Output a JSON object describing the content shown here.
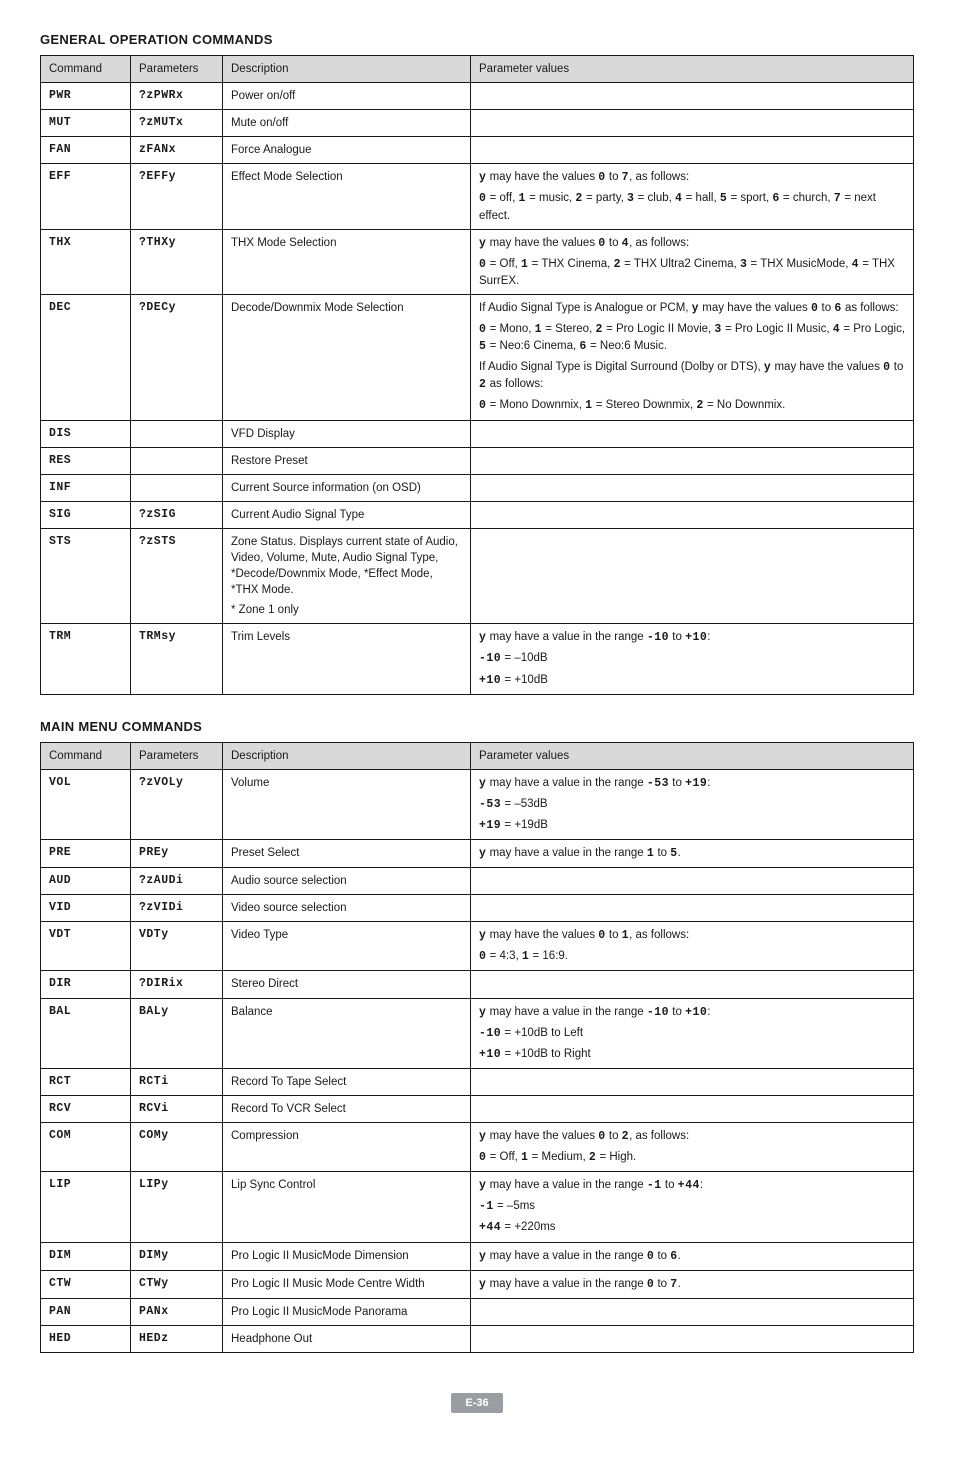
{
  "section1": {
    "title": "GENERAL OPERATION COMMANDS",
    "headers": [
      "Command",
      "Parameters",
      "Description",
      "Parameter values"
    ],
    "rows": [
      {
        "cmd": "PWR",
        "param": "?zPWRx",
        "desc": [
          "Power on/off"
        ],
        "vals": []
      },
      {
        "cmd": "MUT",
        "param": "?zMUTx",
        "desc": [
          "Mute on/off"
        ],
        "vals": []
      },
      {
        "cmd": "FAN",
        "param": "zFANx",
        "desc": [
          "Force Analogue"
        ],
        "vals": []
      },
      {
        "cmd": "EFF",
        "param": "?EFFy",
        "desc": [
          "Effect Mode Selection"
        ],
        "vals": [
          [
            {
              "b": true,
              "m": true,
              "t": "y"
            },
            {
              "t": " may have the values "
            },
            {
              "b": true,
              "m": true,
              "t": "0"
            },
            {
              "t": " to "
            },
            {
              "b": true,
              "m": true,
              "t": "7"
            },
            {
              "t": ", as follows:"
            }
          ],
          [
            {
              "b": true,
              "m": true,
              "t": "0"
            },
            {
              "t": " = off, "
            },
            {
              "b": true,
              "m": true,
              "t": "1"
            },
            {
              "t": " = music, "
            },
            {
              "b": true,
              "m": true,
              "t": "2"
            },
            {
              "t": " = party, "
            },
            {
              "b": true,
              "m": true,
              "t": "3"
            },
            {
              "t": " = club, "
            },
            {
              "b": true,
              "m": true,
              "t": "4"
            },
            {
              "t": " = hall, "
            },
            {
              "b": true,
              "m": true,
              "t": "5"
            },
            {
              "t": " = sport, "
            },
            {
              "b": true,
              "m": true,
              "t": "6"
            },
            {
              "t": " = church, "
            },
            {
              "b": true,
              "m": true,
              "t": "7"
            },
            {
              "t": " = next effect."
            }
          ]
        ]
      },
      {
        "cmd": "THX",
        "param": "?THXy",
        "desc": [
          "THX Mode Selection"
        ],
        "vals": [
          [
            {
              "b": true,
              "m": true,
              "t": "y"
            },
            {
              "t": " may have the values "
            },
            {
              "b": true,
              "m": true,
              "t": "0"
            },
            {
              "t": " to "
            },
            {
              "b": true,
              "m": true,
              "t": "4"
            },
            {
              "t": ", as follows:"
            }
          ],
          [
            {
              "b": true,
              "m": true,
              "t": "0"
            },
            {
              "t": " = Off, "
            },
            {
              "b": true,
              "m": true,
              "t": "1"
            },
            {
              "t": " = THX Cinema, "
            },
            {
              "b": true,
              "m": true,
              "t": "2"
            },
            {
              "t": " = THX Ultra2 Cinema, "
            },
            {
              "b": true,
              "m": true,
              "t": "3"
            },
            {
              "t": " = THX MusicMode, "
            },
            {
              "b": true,
              "m": true,
              "t": "4"
            },
            {
              "t": " = THX SurrEX."
            }
          ]
        ]
      },
      {
        "cmd": "DEC",
        "param": "?DECy",
        "desc": [
          "Decode/Downmix Mode Selection"
        ],
        "vals": [
          [
            {
              "t": "If Audio Signal Type is Analogue or PCM, "
            },
            {
              "b": true,
              "m": true,
              "t": "y"
            },
            {
              "t": " may have the values "
            },
            {
              "b": true,
              "m": true,
              "t": "0"
            },
            {
              "t": " to "
            },
            {
              "b": true,
              "m": true,
              "t": "6"
            },
            {
              "t": " as follows:"
            }
          ],
          [
            {
              "b": true,
              "m": true,
              "t": "0"
            },
            {
              "t": " = Mono, "
            },
            {
              "b": true,
              "m": true,
              "t": "1"
            },
            {
              "t": " = Stereo, "
            },
            {
              "b": true,
              "m": true,
              "t": "2"
            },
            {
              "t": " = Pro Logic II Movie, "
            },
            {
              "b": true,
              "m": true,
              "t": "3"
            },
            {
              "t": " = Pro Logic II Music, "
            },
            {
              "b": true,
              "m": true,
              "t": "4"
            },
            {
              "t": " = Pro Logic, "
            },
            {
              "b": true,
              "m": true,
              "t": "5"
            },
            {
              "t": " = Neo:6 Cinema, "
            },
            {
              "b": true,
              "m": true,
              "t": "6"
            },
            {
              "t": " = Neo:6 Music."
            }
          ],
          [
            {
              "t": "If Audio Signal Type is Digital Surround (Dolby or DTS), "
            },
            {
              "b": true,
              "m": true,
              "t": "y"
            },
            {
              "t": " may have the values "
            },
            {
              "b": true,
              "m": true,
              "t": "0"
            },
            {
              "t": " to "
            },
            {
              "b": true,
              "m": true,
              "t": "2"
            },
            {
              "t": " as follows:"
            }
          ],
          [
            {
              "b": true,
              "m": true,
              "t": "0"
            },
            {
              "t": " = Mono Downmix, "
            },
            {
              "b": true,
              "m": true,
              "t": "1"
            },
            {
              "t": " = Stereo Downmix, "
            },
            {
              "b": true,
              "m": true,
              "t": "2"
            },
            {
              "t": " = No Downmix."
            }
          ]
        ]
      },
      {
        "cmd": "DIS",
        "param": "",
        "desc": [
          "VFD Display"
        ],
        "vals": []
      },
      {
        "cmd": "RES",
        "param": "",
        "desc": [
          "Restore Preset"
        ],
        "vals": []
      },
      {
        "cmd": "INF",
        "param": "",
        "desc": [
          "Current Source information (on OSD)"
        ],
        "vals": []
      },
      {
        "cmd": "SIG",
        "param": "?zSIG",
        "desc": [
          "Current Audio Signal Type"
        ],
        "vals": []
      },
      {
        "cmd": "STS",
        "param": "?zSTS",
        "desc": [
          "Zone Status. Displays current state of Audio, Video, Volume, Mute, Audio Signal Type, *Decode/Downmix Mode, *Effect Mode, *THX Mode.",
          "* Zone 1 only"
        ],
        "vals": []
      },
      {
        "cmd": "TRM",
        "param": "TRMsy",
        "desc": [
          "Trim Levels"
        ],
        "vals": [
          [
            {
              "b": true,
              "m": true,
              "t": "y"
            },
            {
              "t": " may have a value in the range "
            },
            {
              "b": true,
              "m": true,
              "t": "-10"
            },
            {
              "t": " to "
            },
            {
              "b": true,
              "m": true,
              "t": "+10"
            },
            {
              "t": ":"
            }
          ],
          [
            {
              "b": true,
              "m": true,
              "t": "-10"
            },
            {
              "t": " = –10dB"
            }
          ],
          [
            {
              "b": true,
              "m": true,
              "t": "+10"
            },
            {
              "t": " = +10dB"
            }
          ]
        ]
      }
    ]
  },
  "section2": {
    "title": "MAIN MENU COMMANDS",
    "headers": [
      "Command",
      "Parameters",
      "Description",
      "Parameter values"
    ],
    "rows": [
      {
        "cmd": "VOL",
        "param": "?zVOLy",
        "desc": [
          "Volume"
        ],
        "vals": [
          [
            {
              "b": true,
              "m": true,
              "t": "y"
            },
            {
              "t": " may have a value in the range "
            },
            {
              "b": true,
              "m": true,
              "t": "-53"
            },
            {
              "t": " to "
            },
            {
              "b": true,
              "m": true,
              "t": "+19"
            },
            {
              "t": ":"
            }
          ],
          [
            {
              "b": true,
              "m": true,
              "t": "-53"
            },
            {
              "t": " = –53dB"
            }
          ],
          [
            {
              "b": true,
              "m": true,
              "t": "+19"
            },
            {
              "t": " = +19dB"
            }
          ]
        ]
      },
      {
        "cmd": "PRE",
        "param": "PREy",
        "desc": [
          "Preset Select"
        ],
        "vals": [
          [
            {
              "b": true,
              "m": true,
              "t": "y"
            },
            {
              "t": " may have a value in the range "
            },
            {
              "b": true,
              "m": true,
              "t": "1"
            },
            {
              "t": " to "
            },
            {
              "b": true,
              "m": true,
              "t": "5"
            },
            {
              "t": "."
            }
          ]
        ]
      },
      {
        "cmd": "AUD",
        "param": "?zAUDi",
        "desc": [
          "Audio source selection"
        ],
        "vals": []
      },
      {
        "cmd": "VID",
        "param": "?zVIDi",
        "desc": [
          "Video source selection"
        ],
        "vals": []
      },
      {
        "cmd": "VDT",
        "param": "VDTy",
        "desc": [
          "Video Type"
        ],
        "vals": [
          [
            {
              "b": true,
              "m": true,
              "t": "y"
            },
            {
              "t": " may have the values "
            },
            {
              "b": true,
              "m": true,
              "t": "0"
            },
            {
              "t": " to "
            },
            {
              "b": true,
              "m": true,
              "t": "1"
            },
            {
              "t": ", as follows:"
            }
          ],
          [
            {
              "b": true,
              "m": true,
              "t": "0"
            },
            {
              "t": " = 4:3, "
            },
            {
              "b": true,
              "m": true,
              "t": "1"
            },
            {
              "t": " = 16:9."
            }
          ]
        ]
      },
      {
        "cmd": "DIR",
        "param": "?DIRix",
        "desc": [
          "Stereo Direct"
        ],
        "vals": []
      },
      {
        "cmd": "BAL",
        "param": "BALy",
        "desc": [
          "Balance"
        ],
        "vals": [
          [
            {
              "b": true,
              "m": true,
              "t": "y"
            },
            {
              "t": " may have a value in the range "
            },
            {
              "b": true,
              "m": true,
              "t": "-10"
            },
            {
              "t": " to "
            },
            {
              "b": true,
              "m": true,
              "t": "+10"
            },
            {
              "t": ":"
            }
          ],
          [
            {
              "b": true,
              "m": true,
              "t": "-10"
            },
            {
              "t": " = +10dB to Left"
            }
          ],
          [
            {
              "b": true,
              "m": true,
              "t": "+10"
            },
            {
              "t": " = +10dB to Right"
            }
          ]
        ]
      },
      {
        "cmd": "RCT",
        "param": "RCTi",
        "desc": [
          "Record To Tape Select"
        ],
        "vals": []
      },
      {
        "cmd": "RCV",
        "param": "RCVi",
        "desc": [
          "Record To VCR Select"
        ],
        "vals": []
      },
      {
        "cmd": "COM",
        "param": "COMy",
        "desc": [
          "Compression"
        ],
        "vals": [
          [
            {
              "b": true,
              "m": true,
              "t": "y"
            },
            {
              "t": " may have the values "
            },
            {
              "b": true,
              "m": true,
              "t": "0"
            },
            {
              "t": " to "
            },
            {
              "b": true,
              "m": true,
              "t": "2"
            },
            {
              "t": ", as follows:"
            }
          ],
          [
            {
              "b": true,
              "m": true,
              "t": "0"
            },
            {
              "t": " = Off, "
            },
            {
              "b": true,
              "m": true,
              "t": "1"
            },
            {
              "t": " = Medium, "
            },
            {
              "b": true,
              "m": true,
              "t": "2"
            },
            {
              "t": " = High."
            }
          ]
        ]
      },
      {
        "cmd": "LIP",
        "param": "LIPy",
        "desc": [
          "Lip Sync Control"
        ],
        "vals": [
          [
            {
              "b": true,
              "m": true,
              "t": "y"
            },
            {
              "t": " may have a value in the range "
            },
            {
              "b": true,
              "m": true,
              "t": "-1"
            },
            {
              "t": " to "
            },
            {
              "b": true,
              "m": true,
              "t": "+44"
            },
            {
              "t": ":"
            }
          ],
          [
            {
              "b": true,
              "m": true,
              "t": "-1"
            },
            {
              "t": " = –5ms"
            }
          ],
          [
            {
              "b": true,
              "m": true,
              "t": "+44"
            },
            {
              "t": " = +220ms"
            }
          ]
        ]
      },
      {
        "cmd": "DIM",
        "param": "DIMy",
        "desc": [
          "Pro Logic II MusicMode Dimension"
        ],
        "vals": [
          [
            {
              "b": true,
              "m": true,
              "t": "y"
            },
            {
              "t": " may have a value in the range "
            },
            {
              "b": true,
              "m": true,
              "t": "0"
            },
            {
              "t": " to "
            },
            {
              "b": true,
              "m": true,
              "t": "6"
            },
            {
              "t": "."
            }
          ]
        ]
      },
      {
        "cmd": "CTW",
        "param": "CTWy",
        "desc": [
          "Pro Logic II Music Mode Centre Width"
        ],
        "vals": [
          [
            {
              "b": true,
              "m": true,
              "t": "y"
            },
            {
              "t": " may have a value in the range "
            },
            {
              "b": true,
              "m": true,
              "t": "0"
            },
            {
              "t": " to "
            },
            {
              "b": true,
              "m": true,
              "t": "7"
            },
            {
              "t": "."
            }
          ]
        ]
      },
      {
        "cmd": "PAN",
        "param": "PANx",
        "desc": [
          "Pro Logic II MusicMode Panorama"
        ],
        "vals": []
      },
      {
        "cmd": "HED",
        "param": "HEDz",
        "desc": [
          "Headphone Out"
        ],
        "vals": []
      }
    ]
  },
  "page_badge": "E-36"
}
